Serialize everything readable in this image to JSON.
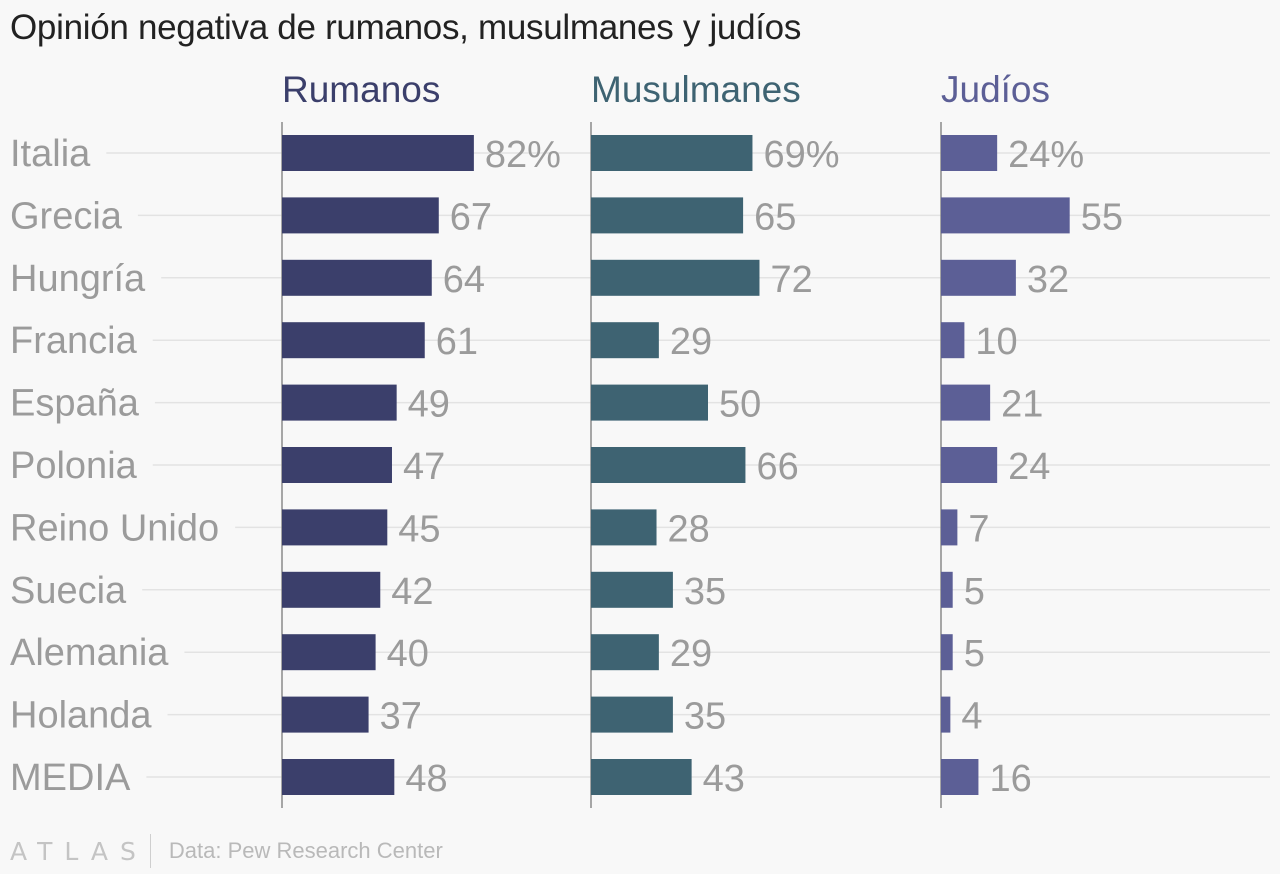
{
  "chart_data": {
    "type": "bar",
    "title": "Opinión negativa de rumanos, musulmanes y judíos",
    "categories": [
      "Italia",
      "Grecia",
      "Hungría",
      "Francia",
      "España",
      "Polonia",
      "Reino Unido",
      "Suecia",
      "Alemania",
      "Holanda",
      "MEDIA"
    ],
    "series": [
      {
        "name": "Rumanos",
        "color": "#3b3f6b",
        "values": [
          82,
          67,
          64,
          61,
          49,
          47,
          45,
          42,
          40,
          37,
          48
        ],
        "labels": [
          "82%",
          "67",
          "64",
          "61",
          "49",
          "47",
          "45",
          "42",
          "40",
          "37",
          "48"
        ]
      },
      {
        "name": "Musulmanes",
        "color": "#3e6372",
        "values": [
          69,
          65,
          72,
          29,
          50,
          66,
          28,
          35,
          29,
          35,
          43
        ],
        "labels": [
          "69%",
          "65",
          "72",
          "29",
          "50",
          "66",
          "28",
          "35",
          "29",
          "35",
          "43"
        ]
      },
      {
        "name": "Judíos",
        "color": "#5c5f96",
        "values": [
          24,
          55,
          32,
          10,
          21,
          24,
          7,
          5,
          5,
          4,
          16
        ],
        "labels": [
          "24%",
          "55",
          "32",
          "10",
          "21",
          "24",
          "7",
          "5",
          "5",
          "4",
          "16"
        ]
      }
    ],
    "xlim": [
      0,
      100
    ],
    "grid": true,
    "orientation": "horizontal",
    "layout": "small multiples"
  },
  "footer": {
    "logo": "ATLAS",
    "source": "Data: Pew Research Center"
  }
}
